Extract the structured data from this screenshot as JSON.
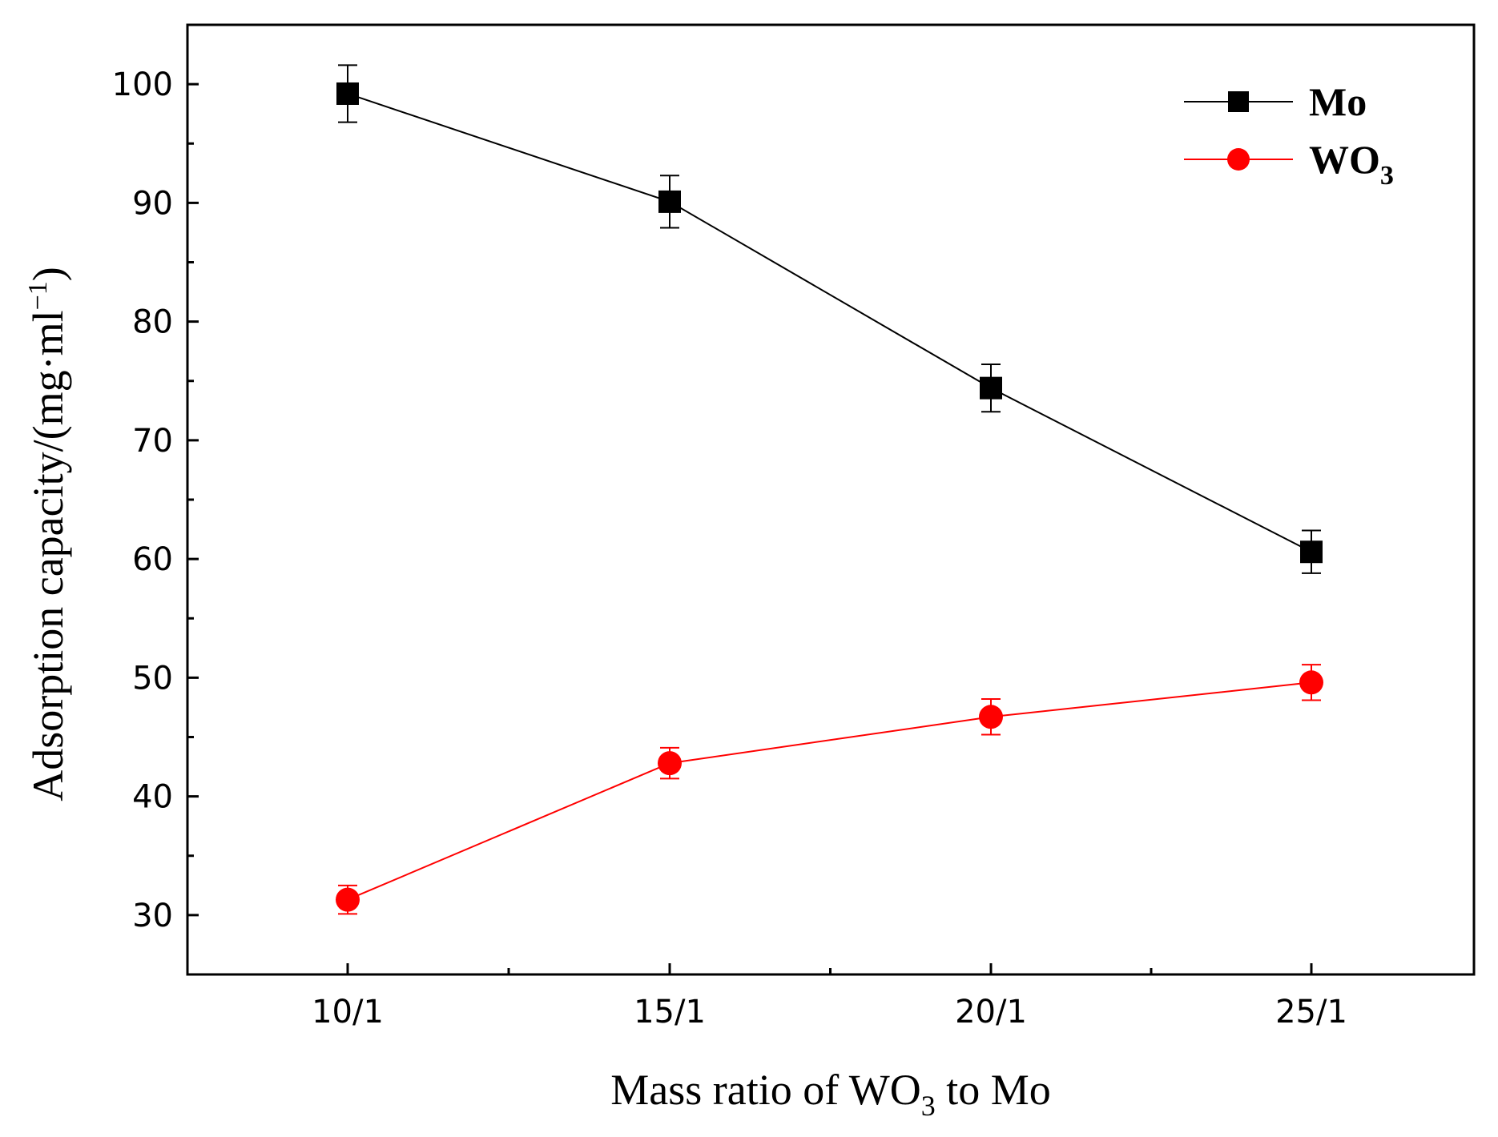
{
  "chart_data": {
    "type": "line",
    "title": "",
    "xlabel": "Mass ratio of WO3 to Mo",
    "xlabel_parts": {
      "pre": "Mass ratio of WO",
      "sub": "3",
      "post": " to Mo"
    },
    "ylabel": "Adsorption capacity/(mg·ml−1)",
    "ylabel_parts": {
      "pre": "Adsorption capacity/(mg·ml",
      "sup": "−1",
      "post": ")"
    },
    "categories": [
      "10/1",
      "15/1",
      "20/1",
      "25/1"
    ],
    "ylim": [
      25,
      105
    ],
    "yticks": [
      30,
      40,
      50,
      60,
      70,
      80,
      90,
      100
    ],
    "ytick_labels": [
      "30",
      "40",
      "50",
      "60",
      "70",
      "80",
      "90",
      "100"
    ],
    "legend_position": "top-right",
    "grid": false,
    "series": [
      {
        "name": "Mo",
        "name_main": "Mo",
        "name_sub": "",
        "marker": "square",
        "color": "#000000",
        "values": [
          99.2,
          90.1,
          74.4,
          60.6
        ],
        "errors": [
          2.4,
          2.2,
          2.0,
          1.8
        ]
      },
      {
        "name": "WO3",
        "name_main": "WO",
        "name_sub": "3",
        "marker": "circle",
        "color": "#ff0000",
        "values": [
          31.3,
          42.8,
          46.7,
          49.6
        ],
        "errors": [
          1.2,
          1.3,
          1.5,
          1.5
        ]
      }
    ]
  }
}
